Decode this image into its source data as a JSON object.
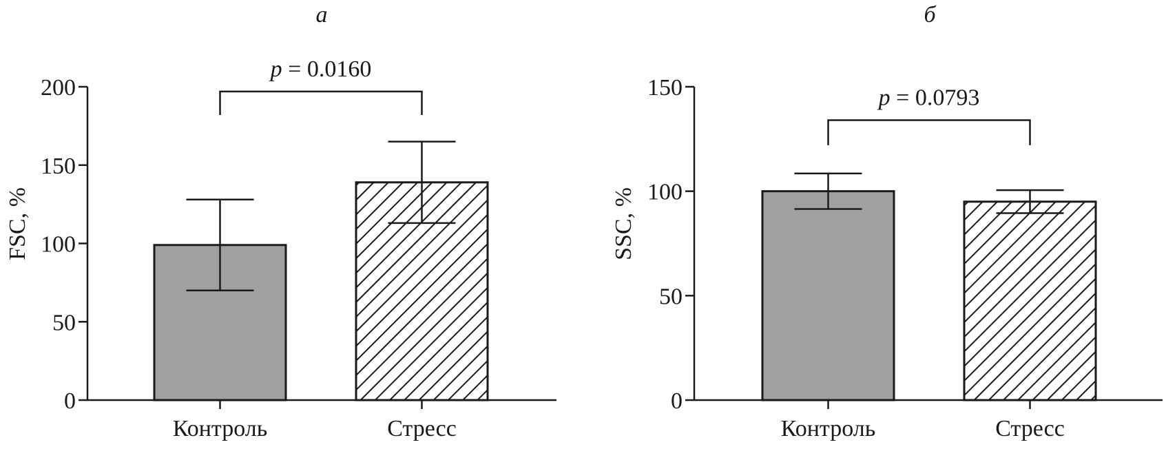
{
  "chart_data": [
    {
      "type": "bar",
      "panel_label": "а",
      "ylabel": "FSC, %",
      "ylim": [
        0,
        200
      ],
      "yticks": [
        0,
        50,
        100,
        150,
        200
      ],
      "categories": [
        "Контроль",
        "Стресс"
      ],
      "values": [
        99,
        139
      ],
      "errors": [
        29,
        26
      ],
      "fills": [
        "solid-gray",
        "hatched"
      ],
      "comparison": {
        "p_symbol": "p",
        "p_text": "= 0.0160",
        "from": 0,
        "to": 1,
        "y": 197,
        "drop": 15
      }
    },
    {
      "type": "bar",
      "panel_label": "б",
      "ylabel": "SSC, %",
      "ylim": [
        0,
        150
      ],
      "yticks": [
        0,
        50,
        100,
        150
      ],
      "categories": [
        "Контроль",
        "Стресс"
      ],
      "values": [
        100,
        95
      ],
      "errors": [
        8.5,
        5.5
      ],
      "fills": [
        "solid-gray",
        "hatched"
      ],
      "comparison": {
        "p_symbol": "p",
        "p_text": "= 0.0793",
        "from": 0,
        "to": 1,
        "y": 134,
        "drop": 12
      }
    }
  ],
  "colors": {
    "bar_fill": "#a0a0a0",
    "stroke": "#1a1a1a",
    "hatch": "#1a1a1a"
  }
}
